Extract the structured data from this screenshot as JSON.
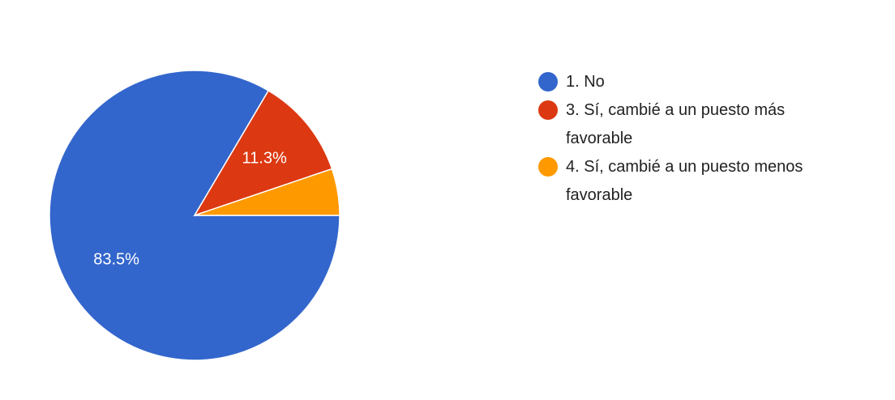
{
  "chart_data": {
    "type": "pie",
    "categories": [
      "1. No",
      "3. Sí, cambié a un puesto más favorable",
      "4. Sí, cambié a un puesto menos favorable"
    ],
    "values": [
      83.5,
      11.3,
      5.2
    ],
    "value_labels": [
      "83.5%",
      "11.3%",
      null
    ],
    "colors": [
      "#3366cc",
      "#dc3912",
      "#ff9900"
    ],
    "legend": "right"
  }
}
